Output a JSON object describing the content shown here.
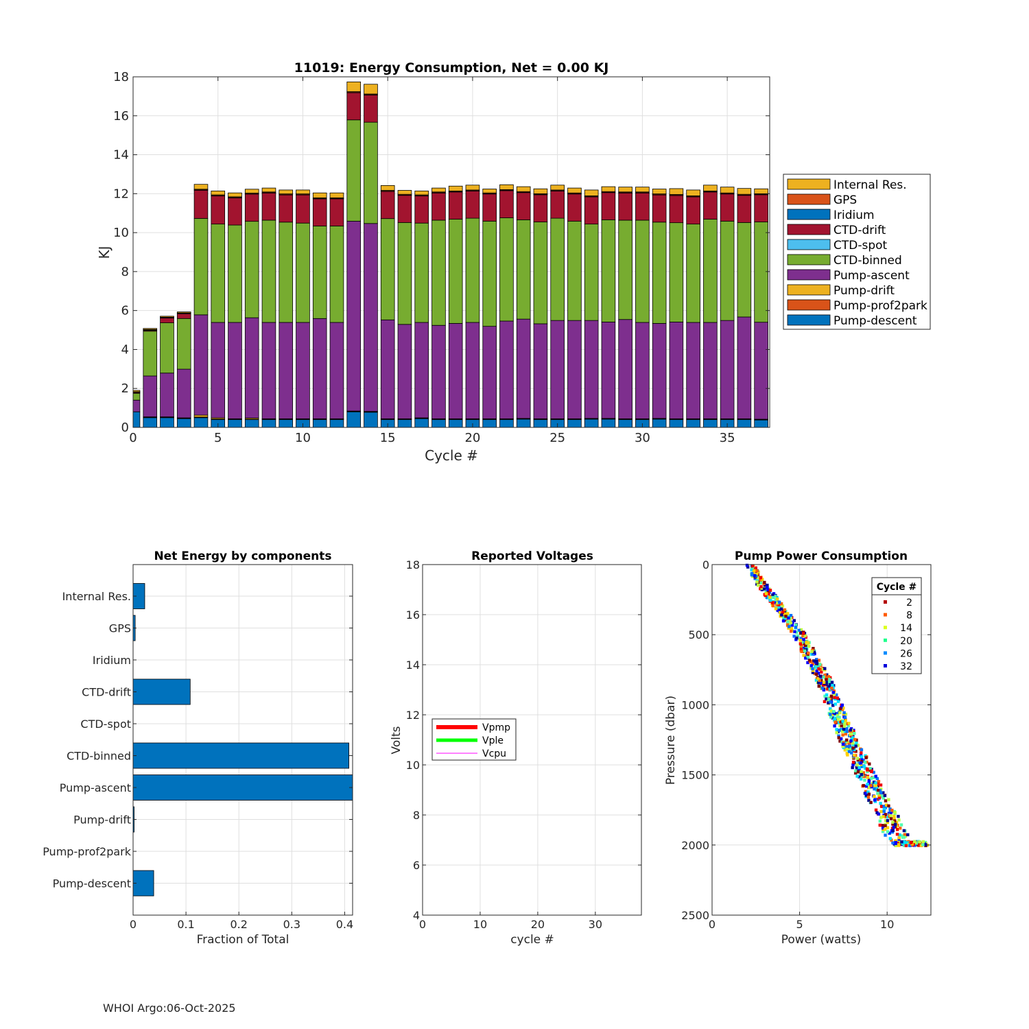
{
  "footer": "WHOI Argo:06-Oct-2025",
  "chart_data": [
    {
      "id": "energy",
      "type": "bar",
      "stacked": true,
      "title": "11019: Energy Consumption,  Net =   0.00 KJ",
      "xlabel": "Cycle #",
      "ylabel": "KJ",
      "xlim": [
        0,
        37.5
      ],
      "ylim": [
        0,
        18
      ],
      "xticks": [
        0,
        5,
        10,
        15,
        20,
        25,
        30,
        35
      ],
      "yticks": [
        0,
        2,
        4,
        6,
        8,
        10,
        12,
        14,
        16,
        18
      ],
      "grid": true,
      "legend_position": "outside-right",
      "legend_order": [
        "Internal Res.",
        "GPS",
        "Iridium",
        "CTD-drift",
        "CTD-spot",
        "CTD-binned",
        "Pump-ascent",
        "Pump-drift",
        "Pump-prof2park",
        "Pump-descent"
      ],
      "categories": [
        0,
        1,
        2,
        3,
        4,
        5,
        6,
        7,
        8,
        9,
        10,
        11,
        12,
        13,
        14,
        15,
        16,
        17,
        18,
        19,
        20,
        21,
        22,
        23,
        24,
        25,
        26,
        27,
        28,
        29,
        30,
        31,
        32,
        33,
        34,
        35,
        36,
        37
      ],
      "series": [
        {
          "name": "Pump-descent",
          "color": "#0072bd",
          "values": [
            0.8,
            0.5,
            0.5,
            0.45,
            0.5,
            0.4,
            0.4,
            0.4,
            0.4,
            0.4,
            0.4,
            0.4,
            0.4,
            0.8,
            0.78,
            0.4,
            0.4,
            0.45,
            0.4,
            0.4,
            0.4,
            0.4,
            0.4,
            0.42,
            0.4,
            0.4,
            0.4,
            0.42,
            0.42,
            0.4,
            0.4,
            0.42,
            0.4,
            0.4,
            0.4,
            0.4,
            0.4,
            0.38
          ]
        },
        {
          "name": "Pump-prof2park",
          "color": "#d95319",
          "values": [
            0,
            0.02,
            0.02,
            0.02,
            0.03,
            0.03,
            0.02,
            0.02,
            0.02,
            0.02,
            0.02,
            0.02,
            0.02,
            0.02,
            0.02,
            0.02,
            0.02,
            0.02,
            0.02,
            0.02,
            0.02,
            0.02,
            0.02,
            0.02,
            0.02,
            0.02,
            0.02,
            0.02,
            0.02,
            0.02,
            0.02,
            0.02,
            0.02,
            0.02,
            0.02,
            0.02,
            0.02,
            0.02
          ]
        },
        {
          "name": "Pump-drift",
          "color": "#edb120",
          "values": [
            0,
            0.02,
            0.02,
            0.02,
            0.1,
            0.06,
            0.02,
            0.06,
            0.02,
            0.02,
            0.02,
            0.02,
            0.02,
            0.02,
            0.02,
            0.02,
            0.02,
            0.02,
            0.02,
            0.02,
            0.02,
            0.02,
            0.02,
            0.02,
            0.02,
            0.02,
            0.02,
            0.02,
            0.02,
            0.02,
            0.02,
            0.02,
            0.02,
            0.02,
            0.02,
            0.02,
            0.02,
            0.02
          ]
        },
        {
          "name": "Pump-ascent",
          "color": "#7e2f8e",
          "values": [
            0.6,
            2.1,
            2.25,
            2.5,
            5.15,
            4.9,
            4.95,
            5.15,
            4.95,
            4.95,
            4.95,
            5.15,
            4.95,
            9.75,
            9.65,
            5.08,
            4.85,
            4.9,
            4.8,
            4.9,
            4.95,
            4.75,
            5.02,
            5.1,
            4.88,
            5.05,
            5.05,
            5.03,
            4.95,
            5.1,
            4.95,
            4.88,
            4.97,
            4.95,
            4.95,
            5.05,
            5.23,
            4.98
          ]
        },
        {
          "name": "CTD-binned",
          "color": "#77ac30",
          "values": [
            0.35,
            2.3,
            2.58,
            2.6,
            4.95,
            5.05,
            5.0,
            4.95,
            5.25,
            5.15,
            5.1,
            4.75,
            4.95,
            5.2,
            5.2,
            5.2,
            5.23,
            5.1,
            5.4,
            5.35,
            5.35,
            5.4,
            5.3,
            5.1,
            5.23,
            5.25,
            5.1,
            4.95,
            5.25,
            5.1,
            5.25,
            5.2,
            5.1,
            5.05,
            5.3,
            5.1,
            4.85,
            5.15
          ]
        },
        {
          "name": "CTD-spot",
          "color": "#4dbeee",
          "values": [
            0,
            0,
            0,
            0,
            0,
            0,
            0,
            0,
            0,
            0,
            0,
            0,
            0,
            0,
            0,
            0,
            0,
            0,
            0,
            0,
            0,
            0,
            0,
            0,
            0,
            0,
            0,
            0,
            0,
            0,
            0,
            0,
            0,
            0,
            0,
            0,
            0,
            0
          ]
        },
        {
          "name": "CTD-drift",
          "color": "#a2142f",
          "values": [
            0.05,
            0.05,
            0.25,
            0.25,
            1.45,
            1.45,
            1.4,
            1.4,
            1.4,
            1.4,
            1.45,
            1.4,
            1.4,
            1.4,
            1.4,
            1.4,
            1.4,
            1.4,
            1.4,
            1.4,
            1.4,
            1.4,
            1.4,
            1.4,
            1.4,
            1.4,
            1.4,
            1.4,
            1.4,
            1.4,
            1.4,
            1.4,
            1.4,
            1.4,
            1.4,
            1.4,
            1.4,
            1.4
          ]
        },
        {
          "name": "Iridium",
          "color": "#0072bd",
          "values": [
            0.01,
            0.01,
            0.01,
            0.01,
            0.01,
            0.01,
            0.01,
            0.01,
            0.01,
            0.01,
            0.01,
            0.01,
            0.01,
            0.01,
            0.01,
            0.01,
            0.01,
            0.01,
            0.01,
            0.01,
            0.01,
            0.01,
            0.01,
            0.01,
            0.01,
            0.01,
            0.01,
            0.01,
            0.01,
            0.01,
            0.01,
            0.01,
            0.01,
            0.01,
            0.01,
            0.01,
            0.01,
            0.01
          ]
        },
        {
          "name": "GPS",
          "color": "#d95319",
          "values": [
            0.02,
            0.03,
            0.03,
            0.03,
            0.04,
            0.04,
            0.04,
            0.04,
            0.04,
            0.04,
            0.04,
            0.04,
            0.04,
            0.04,
            0.04,
            0.04,
            0.04,
            0.04,
            0.04,
            0.04,
            0.04,
            0.04,
            0.04,
            0.04,
            0.04,
            0.04,
            0.04,
            0.04,
            0.04,
            0.04,
            0.04,
            0.04,
            0.04,
            0.04,
            0.04,
            0.04,
            0.04,
            0.04
          ]
        },
        {
          "name": "Internal Res.",
          "color": "#edb120",
          "values": [
            0.07,
            0.05,
            0.05,
            0.05,
            0.25,
            0.2,
            0.2,
            0.2,
            0.2,
            0.2,
            0.2,
            0.25,
            0.25,
            0.5,
            0.5,
            0.25,
            0.2,
            0.2,
            0.2,
            0.25,
            0.25,
            0.2,
            0.25,
            0.25,
            0.25,
            0.25,
            0.25,
            0.3,
            0.25,
            0.25,
            0.25,
            0.25,
            0.3,
            0.3,
            0.3,
            0.3,
            0.3,
            0.25
          ]
        }
      ]
    },
    {
      "id": "components",
      "type": "bar",
      "orientation": "horizontal",
      "title": "Net Energy by components",
      "xlabel": "Fraction of Total",
      "xlim": [
        0,
        0.415
      ],
      "xticks": [
        0,
        0.1,
        0.2,
        0.3,
        0.4
      ],
      "xtick_labels": [
        "0",
        "0.1",
        "0.2",
        "0.3",
        "0.4"
      ],
      "grid": true,
      "categories": [
        "Internal Res.",
        "GPS",
        "Iridium",
        "CTD-drift",
        "CTD-spot",
        "CTD-binned",
        "Pump-ascent",
        "Pump-drift",
        "Pump-prof2park",
        "Pump-descent"
      ],
      "values": [
        0.022,
        0.004,
        0.0,
        0.108,
        0.0,
        0.408,
        0.416,
        0.002,
        0.0,
        0.039
      ],
      "color": "#0072bd"
    },
    {
      "id": "voltages",
      "type": "line",
      "title": "Reported Voltages",
      "xlabel": "cycle #",
      "ylabel": "Volts",
      "xlim": [
        0,
        38
      ],
      "ylim": [
        4,
        18
      ],
      "xticks": [
        0,
        10,
        20,
        30
      ],
      "yticks": [
        4,
        6,
        8,
        10,
        12,
        14,
        16,
        18
      ],
      "grid": true,
      "legend_position": "center-left",
      "series": [
        {
          "name": "Vpmp",
          "color": "#ff0000",
          "values": []
        },
        {
          "name": "Vple",
          "color": "#00ff00",
          "values": []
        },
        {
          "name": "Vcpu",
          "color": "#ff00ff",
          "values": []
        }
      ]
    },
    {
      "id": "pump",
      "type": "scatter",
      "title": "Pump Power Consumption",
      "xlabel": "Power (watts)",
      "ylabel": "Pressure (dbar)",
      "xlim": [
        0,
        12.5
      ],
      "ylim": [
        0,
        2500
      ],
      "y_reversed": true,
      "xticks": [
        0,
        5,
        10
      ],
      "yticks": [
        0,
        500,
        1000,
        1500,
        2000,
        2500
      ],
      "grid": true,
      "legend_title": "Cycle #",
      "legend_position": "top-right",
      "legend_entries": [
        {
          "label": "2",
          "color": "#b40000"
        },
        {
          "label": "8",
          "color": "#ff5a00"
        },
        {
          "label": "14",
          "color": "#dcff1e"
        },
        {
          "label": "20",
          "color": "#1eff8c"
        },
        {
          "label": "26",
          "color": "#0a8cff"
        },
        {
          "label": "32",
          "color": "#0000dc"
        }
      ],
      "colormap": [
        "#00008f",
        "#0000ff",
        "#0070ff",
        "#00dfff",
        "#50ffaf",
        "#bfff40",
        "#ffcf00",
        "#ff6000",
        "#f00000",
        "#800000"
      ],
      "trend": [
        [
          2.2,
          0
        ],
        [
          2.6,
          100
        ],
        [
          3.2,
          200
        ],
        [
          3.8,
          300
        ],
        [
          4.4,
          400
        ],
        [
          5.0,
          500
        ],
        [
          5.6,
          650
        ],
        [
          6.3,
          800
        ],
        [
          6.8,
          950
        ],
        [
          7.3,
          1100
        ],
        [
          7.8,
          1250
        ],
        [
          8.4,
          1400
        ],
        [
          9.0,
          1550
        ],
        [
          9.6,
          1700
        ],
        [
          10.2,
          1850
        ],
        [
          10.7,
          1980
        ],
        [
          11.5,
          2000
        ],
        [
          12.3,
          2000
        ]
      ]
    }
  ]
}
